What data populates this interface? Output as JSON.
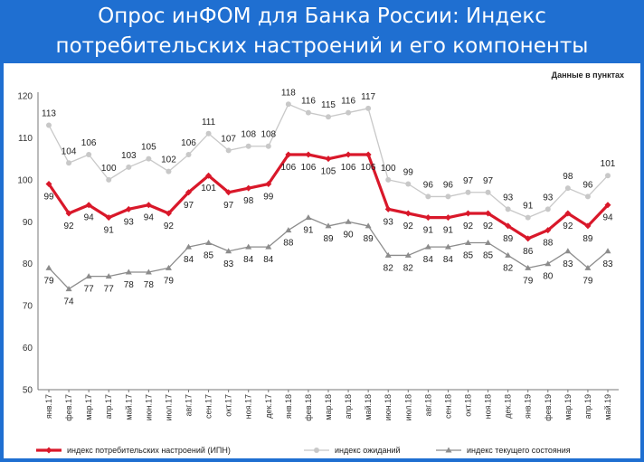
{
  "header": {
    "title_line1": "Опрос инФОМ для Банка России: Индекс",
    "title_line2": "потребительских настроений и его компоненты"
  },
  "colors": {
    "background": "#1f6fd1",
    "ipn": "#d9182a",
    "expect": "#c8c8c8",
    "current": "#8c8c8c"
  },
  "chart_data": {
    "type": "line",
    "units_note": "Данные в пунктах",
    "ylim": [
      50,
      120
    ],
    "yticks": [
      50,
      60,
      70,
      80,
      90,
      100,
      110,
      120
    ],
    "grid": false,
    "legend_position": "bottom",
    "categories": [
      "янв.17",
      "фев.17",
      "мар.17",
      "апр.17",
      "май.17",
      "июн.17",
      "июл.17",
      "авг.17",
      "сен.17",
      "окт.17",
      "ноя.17",
      "дек.17",
      "янв.18",
      "фев.18",
      "мар.18",
      "апр.18",
      "май.18",
      "июн.18",
      "июл.18",
      "авг.18",
      "сен.18",
      "окт.18",
      "ноя.18",
      "дек.18",
      "янв.19",
      "фев.19",
      "мар.19",
      "апр.19",
      "май.19"
    ],
    "series": [
      {
        "key": "expect",
        "name": "индекс ожиданий",
        "values": [
          113,
          104,
          106,
          100,
          103,
          105,
          102,
          106,
          111,
          107,
          108,
          108,
          118,
          116,
          115,
          116,
          117,
          100,
          99,
          96,
          96,
          97,
          97,
          93,
          91,
          93,
          98,
          96,
          101
        ]
      },
      {
        "key": "ipn",
        "name": "индекс потребительских настроений (ИПН)",
        "values": [
          99,
          92,
          94,
          91,
          93,
          94,
          92,
          97,
          101,
          97,
          98,
          99,
          106,
          106,
          105,
          106,
          106,
          93,
          92,
          91,
          91,
          92,
          92,
          89,
          86,
          88,
          92,
          89,
          94
        ]
      },
      {
        "key": "current",
        "name": "индекс текущего состояния",
        "values": [
          79,
          74,
          77,
          77,
          78,
          78,
          79,
          84,
          85,
          83,
          84,
          84,
          88,
          91,
          89,
          90,
          89,
          82,
          82,
          84,
          84,
          85,
          85,
          82,
          79,
          80,
          83,
          79,
          83
        ]
      }
    ]
  }
}
